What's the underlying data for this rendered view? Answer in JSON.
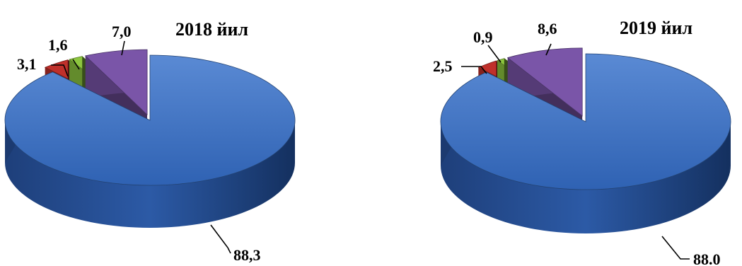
{
  "chart_data": [
    {
      "type": "pie",
      "title": "2018 йил",
      "values": [
        88.3,
        3.1,
        1.6,
        7.0
      ],
      "labels": [
        "88,3",
        "3,1",
        "1,6",
        "7,0"
      ],
      "colors": [
        "#3b6fc0",
        "#c0302b",
        "#8dc63f",
        "#7a55a8"
      ],
      "exploded_index": 0,
      "style": "3d"
    },
    {
      "type": "pie",
      "title": "2019 йил",
      "values": [
        88.0,
        2.5,
        0.9,
        8.6
      ],
      "labels": [
        "88.0",
        "2,5",
        "0,9",
        "8,6"
      ],
      "colors": [
        "#3b6fc0",
        "#c0302b",
        "#8dc63f",
        "#7a55a8"
      ],
      "exploded_index": 0,
      "style": "3d"
    }
  ]
}
